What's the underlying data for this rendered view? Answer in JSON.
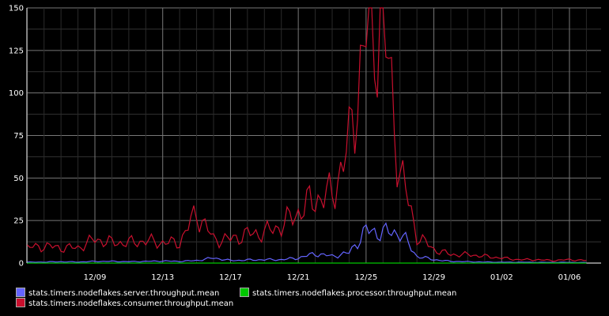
{
  "chart_data": {
    "type": "line",
    "title": "",
    "xlabel": "",
    "ylabel": "",
    "ylim": [
      0,
      150
    ],
    "yticks": [
      0,
      25,
      50,
      75,
      100,
      125,
      150
    ],
    "xticks": [
      "12/09",
      "12/13",
      "12/17",
      "12/21",
      "12/25",
      "12/29",
      "01/02",
      "01/06"
    ],
    "grid": true,
    "legend_position": "bottom-left",
    "background": "#000000",
    "series": [
      {
        "name": "stats.timers.nodeflakes.server.throughput.mean",
        "color": "#6464ff",
        "x": [
          "12/05",
          "12/06",
          "12/07",
          "12/08",
          "12/09",
          "12/10",
          "12/11",
          "12/12",
          "12/13",
          "12/14",
          "12/15",
          "12/16",
          "12/17",
          "12/18",
          "12/19",
          "12/20",
          "12/21",
          "12/22",
          "12/23",
          "12/24",
          "12/25",
          "12/26",
          "12/27",
          "12/28",
          "12/29",
          "12/30",
          "12/31",
          "01/01",
          "01/02",
          "01/03",
          "01/04",
          "01/05",
          "01/06",
          "01/07"
        ],
        "values": [
          0.5,
          0.6,
          0.8,
          0.6,
          1,
          1,
          0.8,
          1,
          1.2,
          1,
          1.5,
          3,
          1.5,
          1.8,
          2,
          2,
          3,
          5.5,
          4,
          6,
          19,
          18,
          18,
          4,
          2,
          1,
          0.8,
          0.6,
          0.5,
          0.5,
          0.4,
          0.4,
          0.4,
          0.3
        ]
      },
      {
        "name": "stats.timers.nodeflakes.processor.throughput.mean",
        "color": "#00c800",
        "x": [
          "12/05",
          "01/07"
        ],
        "values": [
          0,
          0
        ]
      },
      {
        "name": "stats.timers.nodeflakes.consumer.throughput.mean",
        "color": "#c8102e",
        "x": [
          "12/05",
          "12/06",
          "12/07",
          "12/08",
          "12/09",
          "12/10",
          "12/11",
          "12/12",
          "12/13",
          "12/14",
          "12/15",
          "12/16",
          "12/17",
          "12/18",
          "12/19",
          "12/20",
          "12/21",
          "12/22",
          "12/23",
          "12/24",
          "12/25",
          "12/26",
          "12/27",
          "12/28",
          "12/29",
          "12/30",
          "12/31",
          "01/01",
          "01/02",
          "01/03",
          "01/04",
          "01/05",
          "01/06",
          "01/07"
        ],
        "values": [
          9,
          10,
          9,
          9,
          14,
          12,
          12,
          13,
          12,
          12,
          30,
          14,
          14,
          17,
          18,
          22,
          30,
          38,
          40,
          70,
          136,
          142,
          55,
          16,
          8,
          5,
          5,
          4,
          3,
          2,
          2,
          1.5,
          2,
          1.5
        ]
      }
    ]
  }
}
